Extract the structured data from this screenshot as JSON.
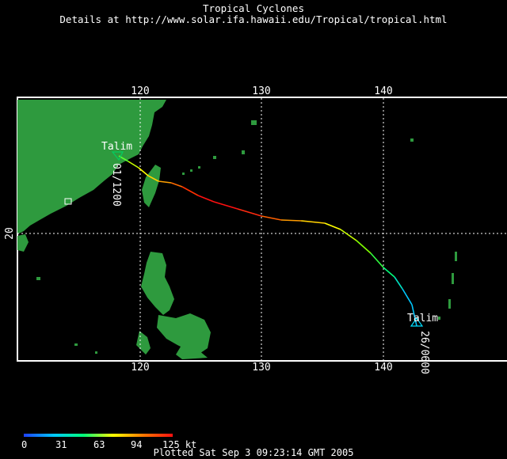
{
  "header": {
    "title": "Tropical Cyclones",
    "subtitle": "Details at http://www.solar.ifa.hawaii.edu/Tropical/tropical.html"
  },
  "axes": {
    "longitude_ticks": [
      "120",
      "130",
      "140"
    ],
    "latitude_ticks": [
      "20"
    ]
  },
  "storm": {
    "name": "Talim",
    "start_label": "26/0600",
    "end_label": "01/1200",
    "track_color_scale": [
      "#1e40ff",
      "#00c8ff",
      "#00ff7a",
      "#ffff00",
      "#ff7a00",
      "#ff1010"
    ]
  },
  "legend": {
    "ticks": [
      "0",
      "31",
      "63",
      "94",
      "125 kt"
    ]
  },
  "footer": {
    "plotted": "Plotted Sat Sep 3 09:23:14 GMT 2005"
  },
  "colors": {
    "background": "#000000",
    "land": "#2e9a3e",
    "grid": "#ffffff"
  }
}
